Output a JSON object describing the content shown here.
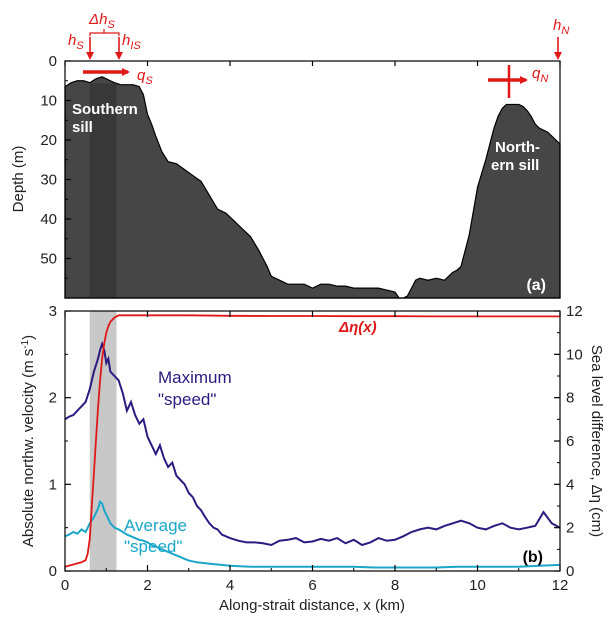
{
  "chart_data": [
    {
      "type": "area",
      "panel_label": "(a)",
      "ylabel": "Depth (m)",
      "xlim": [
        0,
        12
      ],
      "ylim": [
        0,
        60
      ],
      "y_inverted": true,
      "y_ticks": [
        0,
        10,
        20,
        30,
        40,
        50
      ],
      "fill_color": "#464646",
      "shade_color": "#363636",
      "shade_x": [
        0.6,
        1.25
      ],
      "annotations": {
        "southern_sill": [
          "Southern",
          "sill"
        ],
        "northern_sill": [
          "North-",
          "ern sill"
        ],
        "hs": "h",
        "hs_sub": "S",
        "his": "h",
        "his_sub": "IS",
        "dhs": "Δh",
        "dhs_sub": "S",
        "hn": "h",
        "hn_sub": "N",
        "qs": "q",
        "qs_sub": "S",
        "qn": "q",
        "qn_sub": "N"
      },
      "bathymetry": {
        "x": [
          0,
          0.15,
          0.3,
          0.45,
          0.6,
          0.75,
          0.9,
          1.0,
          1.1,
          1.2,
          1.35,
          1.5,
          1.65,
          1.8,
          1.9,
          2.0,
          2.1,
          2.2,
          2.35,
          2.5,
          2.7,
          2.9,
          3.1,
          3.3,
          3.5,
          3.7,
          3.9,
          4.1,
          4.3,
          4.5,
          4.7,
          4.9,
          5.0,
          5.2,
          5.4,
          5.6,
          5.8,
          6.0,
          6.2,
          6.4,
          6.6,
          6.8,
          7.0,
          7.2,
          7.4,
          7.6,
          7.8,
          8.0,
          8.1,
          8.2,
          8.3,
          8.4,
          8.5,
          8.6,
          8.8,
          9.0,
          9.2,
          9.4,
          9.5,
          9.6,
          9.7,
          9.8,
          9.9,
          10.0,
          10.1,
          10.2,
          10.3,
          10.4,
          10.5,
          10.6,
          10.7,
          10.8,
          10.9,
          11.0,
          11.1,
          11.2,
          11.3,
          11.4,
          11.5,
          11.6,
          11.7,
          11.8,
          11.9,
          12.0
        ],
        "depth": [
          6.5,
          5.5,
          5.0,
          5.0,
          5.5,
          4.5,
          4.0,
          4.5,
          5.0,
          5.5,
          6.0,
          6.0,
          6.0,
          6.5,
          8.5,
          13.5,
          16.0,
          19.0,
          23.0,
          25.5,
          26.0,
          27.5,
          29.0,
          30.5,
          34.0,
          37.5,
          38.5,
          40.5,
          42.5,
          44.5,
          48.0,
          52.0,
          54.5,
          55.5,
          56.5,
          56.5,
          56.5,
          57.5,
          56.5,
          56.5,
          57.0,
          57.0,
          57.5,
          57.5,
          57.5,
          57.5,
          58.0,
          58.5,
          60.0,
          61.0,
          59.5,
          57.5,
          55.5,
          55.0,
          55.5,
          55.0,
          55.5,
          53.5,
          53.0,
          52.0,
          48.0,
          44.0,
          38.0,
          32.0,
          28.5,
          25.0,
          21.0,
          17.0,
          14.0,
          12.0,
          11.0,
          11.0,
          11.0,
          11.0,
          11.5,
          12.5,
          14.0,
          16.0,
          17.0,
          17.5,
          18.0,
          19.0,
          20.0,
          21.0
        ]
      }
    },
    {
      "type": "line",
      "panel_label": "(b)",
      "xlabel": "Along-strait distance, x (km)",
      "ylabel_left": "Absolute northw. velocity (m s",
      "ylabel_left_sup": "-1",
      "ylabel_right": "Sea level difference, Δη (cm)",
      "xlim": [
        0,
        12
      ],
      "ylim_left": [
        0,
        3
      ],
      "ylim_right": [
        0,
        12
      ],
      "x_ticks": [
        0,
        2,
        4,
        6,
        8,
        10,
        12
      ],
      "y_ticks_left": [
        0,
        1,
        2,
        3
      ],
      "y_ticks_right": [
        0,
        2,
        4,
        6,
        8,
        10,
        12
      ],
      "shade_x": [
        0.6,
        1.25
      ],
      "shade_color": "#c8c8c8",
      "series": [
        {
          "name": "Maximum \"speed\"",
          "label_lines": [
            "Maximum",
            "\"speed\""
          ],
          "color": "#2e1a80",
          "axis": "left",
          "x": [
            0,
            0.1,
            0.2,
            0.3,
            0.4,
            0.5,
            0.6,
            0.7,
            0.8,
            0.85,
            0.9,
            0.95,
            1.0,
            1.05,
            1.1,
            1.2,
            1.3,
            1.4,
            1.5,
            1.6,
            1.7,
            1.8,
            1.9,
            2.0,
            2.1,
            2.2,
            2.3,
            2.4,
            2.5,
            2.6,
            2.7,
            2.8,
            2.9,
            3.0,
            3.1,
            3.2,
            3.3,
            3.4,
            3.5,
            3.6,
            3.7,
            3.8,
            3.9,
            4.0,
            4.2,
            4.4,
            4.6,
            4.8,
            5.0,
            5.2,
            5.4,
            5.6,
            5.8,
            6.0,
            6.2,
            6.4,
            6.6,
            6.8,
            7.0,
            7.2,
            7.4,
            7.6,
            7.8,
            8.0,
            8.2,
            8.4,
            8.6,
            8.8,
            9.0,
            9.2,
            9.4,
            9.6,
            9.8,
            10.0,
            10.2,
            10.4,
            10.6,
            10.8,
            11.0,
            11.2,
            11.4,
            11.6,
            11.8,
            12.0
          ],
          "values": [
            1.75,
            1.78,
            1.8,
            1.85,
            1.9,
            1.95,
            2.1,
            2.3,
            2.45,
            2.55,
            2.62,
            2.55,
            2.4,
            2.45,
            2.3,
            2.25,
            2.2,
            2.05,
            1.85,
            1.95,
            1.8,
            1.7,
            1.75,
            1.55,
            1.45,
            1.35,
            1.45,
            1.3,
            1.2,
            1.25,
            1.1,
            1.05,
            1.0,
            0.9,
            0.85,
            0.75,
            0.7,
            0.62,
            0.55,
            0.5,
            0.48,
            0.42,
            0.4,
            0.38,
            0.35,
            0.33,
            0.33,
            0.32,
            0.3,
            0.35,
            0.36,
            0.38,
            0.33,
            0.34,
            0.37,
            0.35,
            0.38,
            0.32,
            0.36,
            0.3,
            0.33,
            0.38,
            0.35,
            0.36,
            0.4,
            0.45,
            0.48,
            0.5,
            0.48,
            0.52,
            0.55,
            0.58,
            0.55,
            0.5,
            0.48,
            0.52,
            0.55,
            0.5,
            0.48,
            0.5,
            0.52,
            0.68,
            0.55,
            0.5
          ]
        },
        {
          "name": "Average \"speed\"",
          "label_lines": [
            "Average",
            "\"speed\""
          ],
          "color": "#1aa7c8",
          "axis": "left",
          "x": [
            0,
            0.1,
            0.2,
            0.3,
            0.4,
            0.5,
            0.6,
            0.7,
            0.8,
            0.85,
            0.9,
            0.95,
            1.0,
            1.1,
            1.2,
            1.3,
            1.4,
            1.5,
            1.6,
            1.7,
            1.8,
            1.9,
            2.0,
            2.1,
            2.2,
            2.3,
            2.4,
            2.5,
            2.6,
            2.7,
            2.8,
            2.9,
            3.0,
            3.2,
            3.4,
            3.6,
            3.8,
            4.0,
            4.5,
            5.0,
            5.5,
            6.0,
            6.5,
            7.0,
            7.5,
            8.0,
            8.5,
            9.0,
            9.5,
            10.0,
            10.5,
            11.0,
            11.5,
            12.0
          ],
          "values": [
            0.4,
            0.42,
            0.45,
            0.43,
            0.48,
            0.45,
            0.55,
            0.62,
            0.72,
            0.8,
            0.78,
            0.7,
            0.65,
            0.55,
            0.5,
            0.48,
            0.45,
            0.42,
            0.4,
            0.38,
            0.36,
            0.35,
            0.33,
            0.3,
            0.28,
            0.26,
            0.24,
            0.22,
            0.2,
            0.18,
            0.16,
            0.14,
            0.12,
            0.1,
            0.09,
            0.08,
            0.07,
            0.06,
            0.05,
            0.05,
            0.05,
            0.05,
            0.05,
            0.05,
            0.04,
            0.04,
            0.04,
            0.04,
            0.05,
            0.05,
            0.05,
            0.05,
            0.06,
            0.07
          ]
        },
        {
          "name": "Δη(x)",
          "color": "#e01818",
          "axis": "right",
          "x": [
            0,
            0.2,
            0.4,
            0.5,
            0.55,
            0.6,
            0.65,
            0.7,
            0.75,
            0.8,
            0.85,
            0.9,
            0.95,
            1.0,
            1.05,
            1.1,
            1.15,
            1.2,
            1.25,
            1.3,
            1.4,
            1.5,
            2.0,
            3.0,
            4.0,
            5.0,
            6.0,
            7.0,
            8.0,
            9.0,
            10.0,
            11.0,
            12.0
          ],
          "values": [
            0.2,
            0.3,
            0.4,
            0.5,
            0.8,
            1.5,
            3.0,
            4.5,
            6.0,
            7.5,
            8.8,
            9.8,
            10.5,
            11.0,
            11.3,
            11.5,
            11.6,
            11.7,
            11.75,
            11.8,
            11.8,
            11.8,
            11.8,
            11.8,
            11.78,
            11.77,
            11.77,
            11.76,
            11.76,
            11.75,
            11.75,
            11.75,
            11.75
          ]
        }
      ]
    }
  ]
}
